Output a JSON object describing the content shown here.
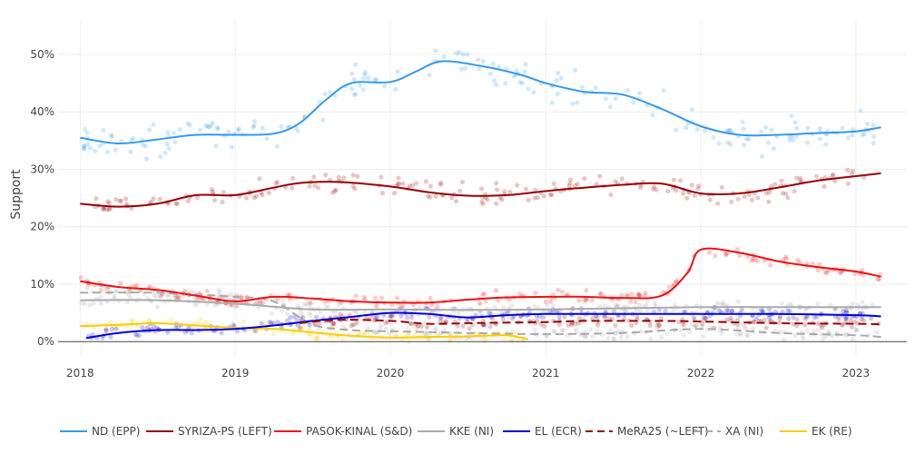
{
  "chart_data": {
    "type": "line",
    "title": "",
    "xlabel": "",
    "ylabel": "Support",
    "x_range": [
      "2017-11-10",
      "2023-05-01"
    ],
    "ylim": [
      -2.5,
      56
    ],
    "x_ticks": [
      "2018",
      "2019",
      "2020",
      "2021",
      "2022",
      "2023"
    ],
    "y_ticks": [
      "0%",
      "10%",
      "20%",
      "30%",
      "40%",
      "50%"
    ],
    "grid": true,
    "legend_position": "bottom",
    "series": [
      {
        "name": "ND (EPP)",
        "color": "#3399ee",
        "dash": "solid",
        "points": [
          [
            "2018-01-01",
            35.5
          ],
          [
            "2018-04-01",
            34.5
          ],
          [
            "2018-07-01",
            35.2
          ],
          [
            "2018-10-01",
            36.0
          ],
          [
            "2019-01-01",
            36.0
          ],
          [
            "2019-04-01",
            36.2
          ],
          [
            "2019-06-01",
            38.0
          ],
          [
            "2019-08-01",
            42.0
          ],
          [
            "2019-10-01",
            45.0
          ],
          [
            "2020-01-01",
            45.2
          ],
          [
            "2020-03-01",
            47.0
          ],
          [
            "2020-05-01",
            48.8
          ],
          [
            "2020-08-01",
            48.0
          ],
          [
            "2020-11-01",
            46.5
          ],
          [
            "2021-01-01",
            45.0
          ],
          [
            "2021-04-01",
            43.5
          ],
          [
            "2021-07-01",
            43.0
          ],
          [
            "2021-10-01",
            40.5
          ],
          [
            "2022-01-01",
            37.5
          ],
          [
            "2022-04-01",
            36.0
          ],
          [
            "2022-07-01",
            36.0
          ],
          [
            "2022-10-01",
            36.3
          ],
          [
            "2023-01-01",
            36.6
          ],
          [
            "2023-03-01",
            37.3
          ]
        ]
      },
      {
        "name": "SYRIZA-PS (LEFT)",
        "color": "#990000",
        "dash": "solid",
        "points": [
          [
            "2018-01-01",
            24.0
          ],
          [
            "2018-04-01",
            23.5
          ],
          [
            "2018-07-01",
            24.0
          ],
          [
            "2018-10-01",
            25.5
          ],
          [
            "2019-01-01",
            25.5
          ],
          [
            "2019-04-01",
            26.8
          ],
          [
            "2019-06-01",
            27.6
          ],
          [
            "2019-09-01",
            27.8
          ],
          [
            "2020-01-01",
            27.0
          ],
          [
            "2020-04-01",
            26.0
          ],
          [
            "2020-07-01",
            25.4
          ],
          [
            "2020-10-01",
            25.5
          ],
          [
            "2021-01-01",
            26.2
          ],
          [
            "2021-04-01",
            26.8
          ],
          [
            "2021-07-01",
            27.3
          ],
          [
            "2021-10-01",
            27.5
          ],
          [
            "2022-01-01",
            25.8
          ],
          [
            "2022-04-01",
            25.8
          ],
          [
            "2022-07-01",
            26.8
          ],
          [
            "2022-10-01",
            28.0
          ],
          [
            "2023-01-01",
            28.8
          ],
          [
            "2023-03-01",
            29.3
          ]
        ]
      },
      {
        "name": "PASOK-KINAL (S&D)",
        "color": "#ee1111",
        "dash": "solid",
        "points": [
          [
            "2018-01-01",
            10.5
          ],
          [
            "2018-04-01",
            9.5
          ],
          [
            "2018-07-01",
            9.0
          ],
          [
            "2018-10-01",
            8.0
          ],
          [
            "2019-01-01",
            7.0
          ],
          [
            "2019-04-01",
            7.8
          ],
          [
            "2019-07-01",
            7.5
          ],
          [
            "2019-10-01",
            7.0
          ],
          [
            "2020-01-01",
            6.8
          ],
          [
            "2020-04-01",
            6.8
          ],
          [
            "2020-07-01",
            7.3
          ],
          [
            "2020-10-01",
            7.7
          ],
          [
            "2021-01-01",
            7.8
          ],
          [
            "2021-04-01",
            7.8
          ],
          [
            "2021-07-01",
            7.6
          ],
          [
            "2021-10-01",
            8.0
          ],
          [
            "2021-12-01",
            12.0
          ],
          [
            "2022-01-01",
            16.0
          ],
          [
            "2022-04-01",
            15.5
          ],
          [
            "2022-07-01",
            14.0
          ],
          [
            "2022-10-01",
            13.0
          ],
          [
            "2023-01-01",
            12.2
          ],
          [
            "2023-03-01",
            11.3
          ]
        ]
      },
      {
        "name": "KKE (NI)",
        "color": "#aaaaaa",
        "dash": "solid",
        "points": [
          [
            "2018-01-01",
            7.2
          ],
          [
            "2018-07-01",
            7.2
          ],
          [
            "2019-01-01",
            6.6
          ],
          [
            "2019-07-01",
            5.6
          ],
          [
            "2020-01-01",
            5.6
          ],
          [
            "2020-07-01",
            5.5
          ],
          [
            "2021-01-01",
            5.6
          ],
          [
            "2021-07-01",
            5.8
          ],
          [
            "2022-01-01",
            6.0
          ],
          [
            "2022-07-01",
            6.0
          ],
          [
            "2023-01-01",
            6.0
          ],
          [
            "2023-03-01",
            6.0
          ]
        ]
      },
      {
        "name": "EL (ECR)",
        "color": "#0000dd",
        "dash": "solid",
        "points": [
          [
            "2018-01-15",
            0.6
          ],
          [
            "2018-04-01",
            1.5
          ],
          [
            "2018-07-01",
            2.0
          ],
          [
            "2018-10-01",
            2.0
          ],
          [
            "2019-01-01",
            2.2
          ],
          [
            "2019-04-01",
            2.8
          ],
          [
            "2019-07-01",
            3.6
          ],
          [
            "2019-10-01",
            4.3
          ],
          [
            "2020-01-01",
            5.0
          ],
          [
            "2020-04-01",
            4.8
          ],
          [
            "2020-07-01",
            4.2
          ],
          [
            "2020-10-01",
            4.6
          ],
          [
            "2021-01-01",
            4.8
          ],
          [
            "2021-07-01",
            4.8
          ],
          [
            "2022-01-01",
            4.8
          ],
          [
            "2022-07-01",
            4.8
          ],
          [
            "2023-01-01",
            4.6
          ],
          [
            "2023-03-01",
            4.4
          ]
        ]
      },
      {
        "name": "MeRA25 (~LEFT)",
        "color": "#990000",
        "dash": "dash",
        "points": [
          [
            "2019-06-01",
            3.2
          ],
          [
            "2019-09-01",
            3.8
          ],
          [
            "2020-01-01",
            3.6
          ],
          [
            "2020-04-01",
            3.1
          ],
          [
            "2020-07-01",
            3.2
          ],
          [
            "2020-10-01",
            3.3
          ],
          [
            "2021-01-01",
            3.4
          ],
          [
            "2021-04-01",
            3.6
          ],
          [
            "2021-07-01",
            3.6
          ],
          [
            "2021-10-01",
            3.6
          ],
          [
            "2022-01-01",
            3.5
          ],
          [
            "2022-07-01",
            3.2
          ],
          [
            "2023-01-01",
            3.1
          ],
          [
            "2023-03-01",
            3.0
          ]
        ]
      },
      {
        "name": "XA (NI)",
        "color": "#aaaaaa",
        "dash": "dash",
        "points": [
          [
            "2018-01-01",
            8.5
          ],
          [
            "2018-07-01",
            8.5
          ],
          [
            "2019-01-01",
            7.8
          ],
          [
            "2019-04-01",
            7.0
          ],
          [
            "2019-07-01",
            3.0
          ],
          [
            "2019-10-01",
            2.0
          ],
          [
            "2020-01-01",
            1.8
          ],
          [
            "2020-07-01",
            1.5
          ],
          [
            "2021-01-01",
            1.3
          ],
          [
            "2021-07-01",
            1.5
          ],
          [
            "2022-01-01",
            2.2
          ],
          [
            "2022-07-01",
            1.5
          ],
          [
            "2023-01-01",
            1.1
          ],
          [
            "2023-03-01",
            0.8
          ]
        ]
      },
      {
        "name": "EK (RE)",
        "color": "#ffcc00",
        "dash": "solid",
        "points": [
          [
            "2018-01-01",
            2.7
          ],
          [
            "2018-04-01",
            2.9
          ],
          [
            "2018-07-01",
            3.2
          ],
          [
            "2018-10-01",
            2.8
          ],
          [
            "2019-01-01",
            2.4
          ],
          [
            "2019-04-01",
            2.2
          ],
          [
            "2019-07-01",
            1.6
          ],
          [
            "2019-10-01",
            1.0
          ],
          [
            "2020-01-01",
            0.7
          ],
          [
            "2020-04-01",
            0.8
          ],
          [
            "2020-07-01",
            0.9
          ],
          [
            "2020-10-01",
            1.1
          ],
          [
            "2020-11-20",
            0.4
          ]
        ]
      }
    ]
  }
}
